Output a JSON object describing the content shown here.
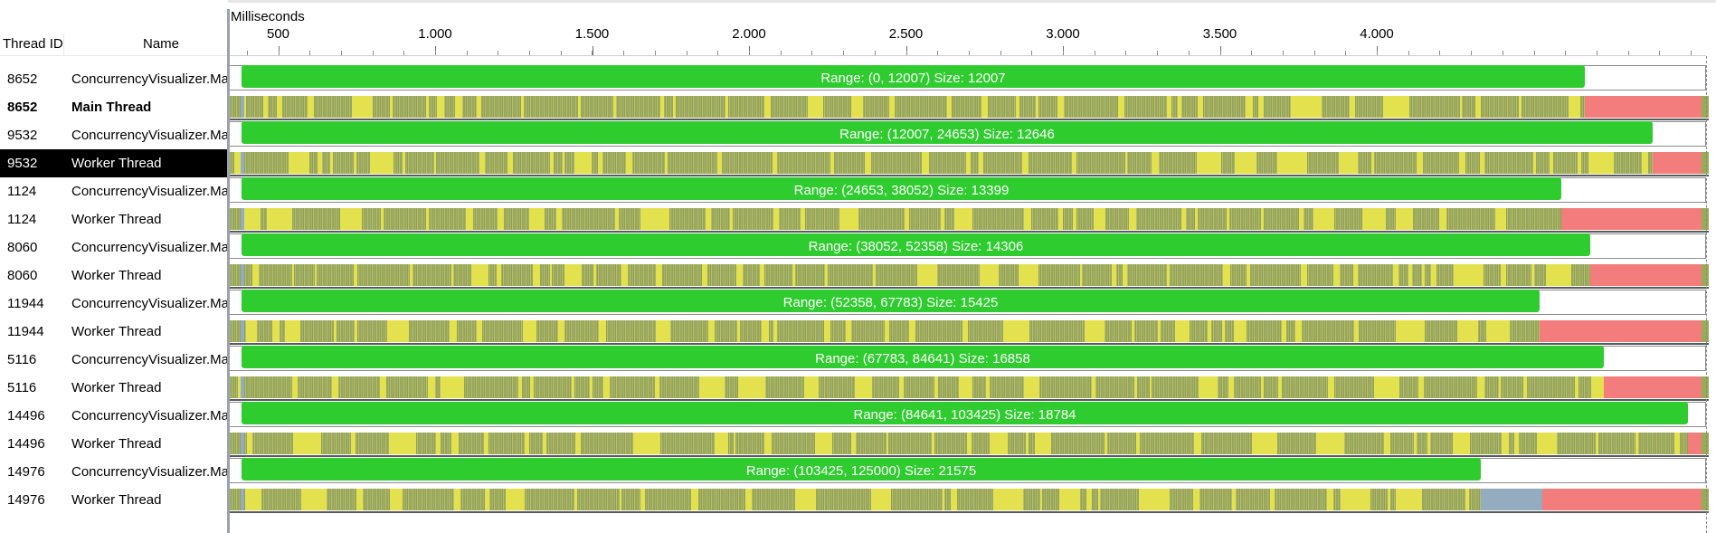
{
  "header": {
    "thread_id_label": "Thread ID",
    "name_label": "Name",
    "ruler_title": "Milliseconds",
    "ticks": [
      "500",
      "1.000",
      "1.500",
      "2.000",
      "2.500",
      "3.000",
      "3.500",
      "4.000"
    ]
  },
  "rows": [
    {
      "tid": "8652",
      "name": "ConcurrencyVisualizer.Mar",
      "kind": "range",
      "label": "Range: (0, 12007) Size: 12007",
      "fraction": 0.921
    },
    {
      "tid": "8652",
      "name": "Main Thread",
      "kind": "thread",
      "bold": true,
      "fraction": 0.921
    },
    {
      "tid": "9532",
      "name": "ConcurrencyVisualizer.Mar",
      "kind": "range",
      "label": "Range: (12007, 24653) Size: 12646",
      "fraction": 0.968
    },
    {
      "tid": "9532",
      "name": "Worker Thread",
      "kind": "thread",
      "selected": true,
      "fraction": 0.968
    },
    {
      "tid": "1124",
      "name": "ConcurrencyVisualizer.Mar",
      "kind": "range",
      "label": "Range: (24653, 38052) Size: 13399",
      "fraction": 0.905
    },
    {
      "tid": "1124",
      "name": "Worker Thread",
      "kind": "thread",
      "fraction": 0.905
    },
    {
      "tid": "8060",
      "name": "ConcurrencyVisualizer.Mar",
      "kind": "range",
      "label": "Range: (38052, 52358) Size: 14306",
      "fraction": 0.925
    },
    {
      "tid": "8060",
      "name": "Worker Thread",
      "kind": "thread",
      "fraction": 0.925
    },
    {
      "tid": "11944",
      "name": "ConcurrencyVisualizer.Mar",
      "kind": "range",
      "label": "Range: (52358, 67783) Size: 15425",
      "fraction": 0.89
    },
    {
      "tid": "11944",
      "name": "Worker Thread",
      "kind": "thread",
      "fraction": 0.89
    },
    {
      "tid": "5116",
      "name": "ConcurrencyVisualizer.Mar",
      "kind": "range",
      "label": "Range: (67783, 84641) Size: 16858",
      "fraction": 0.934
    },
    {
      "tid": "5116",
      "name": "Worker Thread",
      "kind": "thread",
      "fraction": 0.934
    },
    {
      "tid": "14496",
      "name": "ConcurrencyVisualizer.Mar",
      "kind": "range",
      "label": "Range: (84641, 103425) Size: 18784",
      "fraction": 0.992
    },
    {
      "tid": "14496",
      "name": "Worker Thread",
      "kind": "thread",
      "fraction": 0.992
    },
    {
      "tid": "14976",
      "name": "ConcurrencyVisualizer.Mar",
      "kind": "range",
      "label": "Range: (103425, 125000) Size: 21575",
      "fraction": 0.85
    },
    {
      "tid": "14976",
      "name": "Worker Thread",
      "kind": "thread",
      "fraction": 0.85
    }
  ],
  "colors": {
    "range_bar": "#2ecc2e",
    "execution": "#98ac58",
    "sync_wait": "#e3e24e",
    "idle_end": "#f37c7c",
    "other_wait": "#93acbf",
    "selected_row": "#000000"
  }
}
